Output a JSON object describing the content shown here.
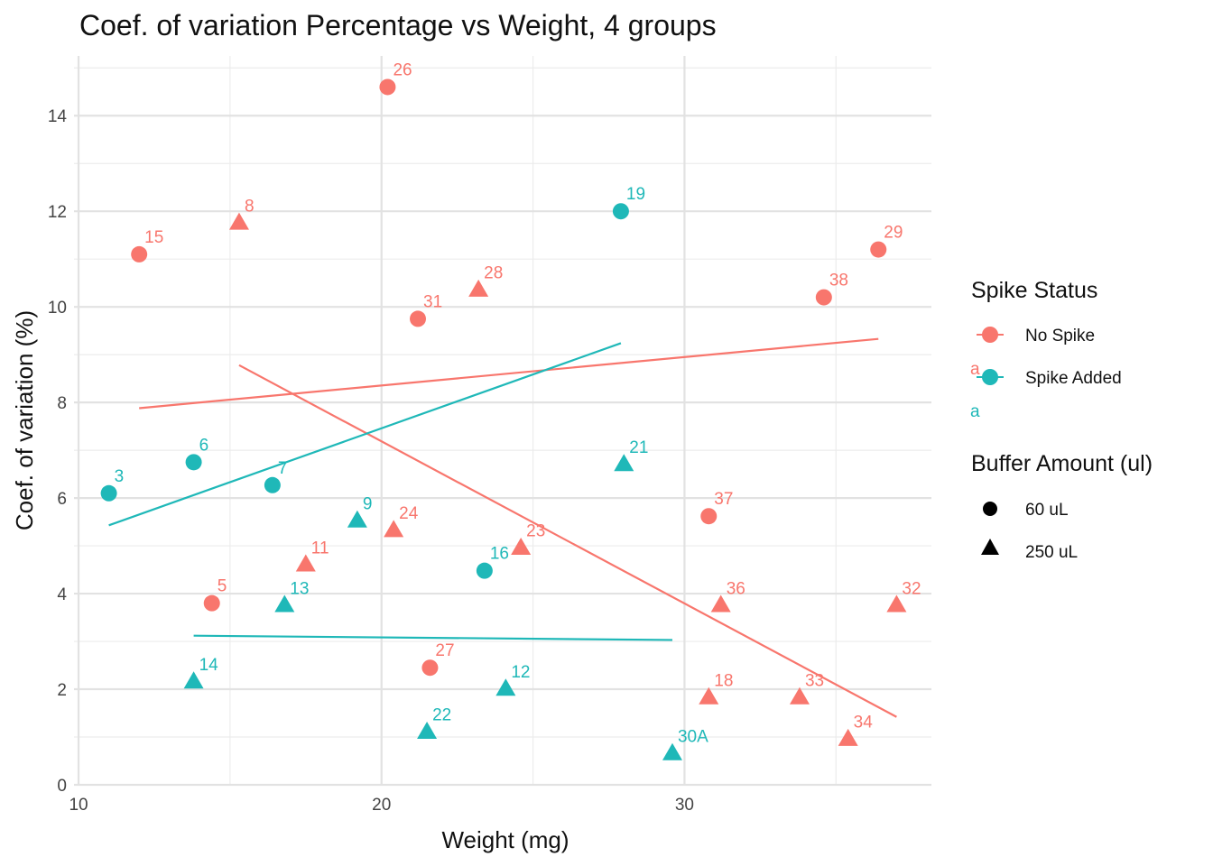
{
  "chart_data": {
    "type": "scatter",
    "title": "Coef. of variation Percentage vs Weight, 4 groups",
    "xlabel": "Weight (mg)",
    "ylabel": "Coef. of variation (%)",
    "xlim": [
      9.85,
      38.15
    ],
    "ylim": [
      0,
      15.25
    ],
    "xticks": [
      10,
      20,
      30
    ],
    "yticks": [
      0,
      2,
      4,
      6,
      8,
      10,
      12,
      14
    ],
    "grid": true,
    "colors": {
      "No Spike": "#F8766D",
      "Spike Added": "#1FB8B8"
    },
    "legends": [
      {
        "title": "Spike Status",
        "items": [
          {
            "label": "No Spike",
            "color": "#F8766D",
            "key_glyph": "a"
          },
          {
            "label": "Spike Added",
            "color": "#1FB8B8",
            "key_glyph": "a"
          }
        ]
      },
      {
        "title": "Buffer Amount (ul)",
        "items": [
          {
            "label": "60 uL",
            "shape": "circle"
          },
          {
            "label": "250 uL",
            "shape": "triangle"
          }
        ]
      }
    ],
    "points": [
      {
        "label": "26",
        "x": 20.2,
        "y": 14.6,
        "group": "No Spike",
        "shape": "circle"
      },
      {
        "label": "15",
        "x": 12.0,
        "y": 11.1,
        "group": "No Spike",
        "shape": "circle"
      },
      {
        "label": "31",
        "x": 21.2,
        "y": 9.75,
        "group": "No Spike",
        "shape": "circle"
      },
      {
        "label": "38",
        "x": 34.6,
        "y": 10.2,
        "group": "No Spike",
        "shape": "circle"
      },
      {
        "label": "29",
        "x": 36.4,
        "y": 11.2,
        "group": "No Spike",
        "shape": "circle"
      },
      {
        "label": "5",
        "x": 14.4,
        "y": 3.8,
        "group": "No Spike",
        "shape": "circle"
      },
      {
        "label": "27",
        "x": 21.6,
        "y": 2.45,
        "group": "No Spike",
        "shape": "circle"
      },
      {
        "label": "37",
        "x": 30.8,
        "y": 5.62,
        "group": "No Spike",
        "shape": "circle"
      },
      {
        "label": "8",
        "x": 15.3,
        "y": 11.75,
        "group": "No Spike",
        "shape": "triangle"
      },
      {
        "label": "28",
        "x": 23.2,
        "y": 10.35,
        "group": "No Spike",
        "shape": "triangle"
      },
      {
        "label": "11",
        "x": 17.5,
        "y": 4.6,
        "group": "No Spike",
        "shape": "triangle"
      },
      {
        "label": "24",
        "x": 20.4,
        "y": 5.32,
        "group": "No Spike",
        "shape": "triangle"
      },
      {
        "label": "23",
        "x": 24.6,
        "y": 4.95,
        "group": "No Spike",
        "shape": "triangle"
      },
      {
        "label": "36",
        "x": 31.2,
        "y": 3.75,
        "group": "No Spike",
        "shape": "triangle"
      },
      {
        "label": "32",
        "x": 37.0,
        "y": 3.75,
        "group": "No Spike",
        "shape": "triangle"
      },
      {
        "label": "18",
        "x": 30.8,
        "y": 1.82,
        "group": "No Spike",
        "shape": "triangle"
      },
      {
        "label": "33",
        "x": 33.8,
        "y": 1.82,
        "group": "No Spike",
        "shape": "triangle"
      },
      {
        "label": "34",
        "x": 35.4,
        "y": 0.95,
        "group": "No Spike",
        "shape": "triangle"
      },
      {
        "label": "19",
        "x": 27.9,
        "y": 12.0,
        "group": "Spike Added",
        "shape": "circle"
      },
      {
        "label": "3",
        "x": 11.0,
        "y": 6.1,
        "group": "Spike Added",
        "shape": "circle"
      },
      {
        "label": "6",
        "x": 13.8,
        "y": 6.75,
        "group": "Spike Added",
        "shape": "circle"
      },
      {
        "label": "7",
        "x": 16.4,
        "y": 6.27,
        "group": "Spike Added",
        "shape": "circle"
      },
      {
        "label": "16",
        "x": 23.4,
        "y": 4.48,
        "group": "Spike Added",
        "shape": "circle"
      },
      {
        "label": "9",
        "x": 19.2,
        "y": 5.52,
        "group": "Spike Added",
        "shape": "triangle"
      },
      {
        "label": "21",
        "x": 28.0,
        "y": 6.7,
        "group": "Spike Added",
        "shape": "triangle"
      },
      {
        "label": "13",
        "x": 16.8,
        "y": 3.75,
        "group": "Spike Added",
        "shape": "triangle"
      },
      {
        "label": "14",
        "x": 13.8,
        "y": 2.15,
        "group": "Spike Added",
        "shape": "triangle"
      },
      {
        "label": "12",
        "x": 24.1,
        "y": 2.0,
        "group": "Spike Added",
        "shape": "triangle"
      },
      {
        "label": "22",
        "x": 21.5,
        "y": 1.1,
        "group": "Spike Added",
        "shape": "triangle"
      },
      {
        "label": "30A",
        "x": 29.6,
        "y": 0.65,
        "group": "Spike Added",
        "shape": "triangle"
      }
    ],
    "fit_lines": [
      {
        "group": "No Spike",
        "shape": "circle",
        "x": [
          12.0,
          36.4
        ],
        "y": [
          7.88,
          9.33
        ]
      },
      {
        "group": "No Spike",
        "shape": "triangle",
        "x": [
          15.3,
          37.0
        ],
        "y": [
          8.78,
          1.42
        ]
      },
      {
        "group": "Spike Added",
        "shape": "circle",
        "x": [
          11.0,
          27.9
        ],
        "y": [
          5.43,
          9.24
        ]
      },
      {
        "group": "Spike Added",
        "shape": "triangle",
        "x": [
          13.8,
          29.6
        ],
        "y": [
          3.12,
          3.03
        ]
      }
    ]
  }
}
